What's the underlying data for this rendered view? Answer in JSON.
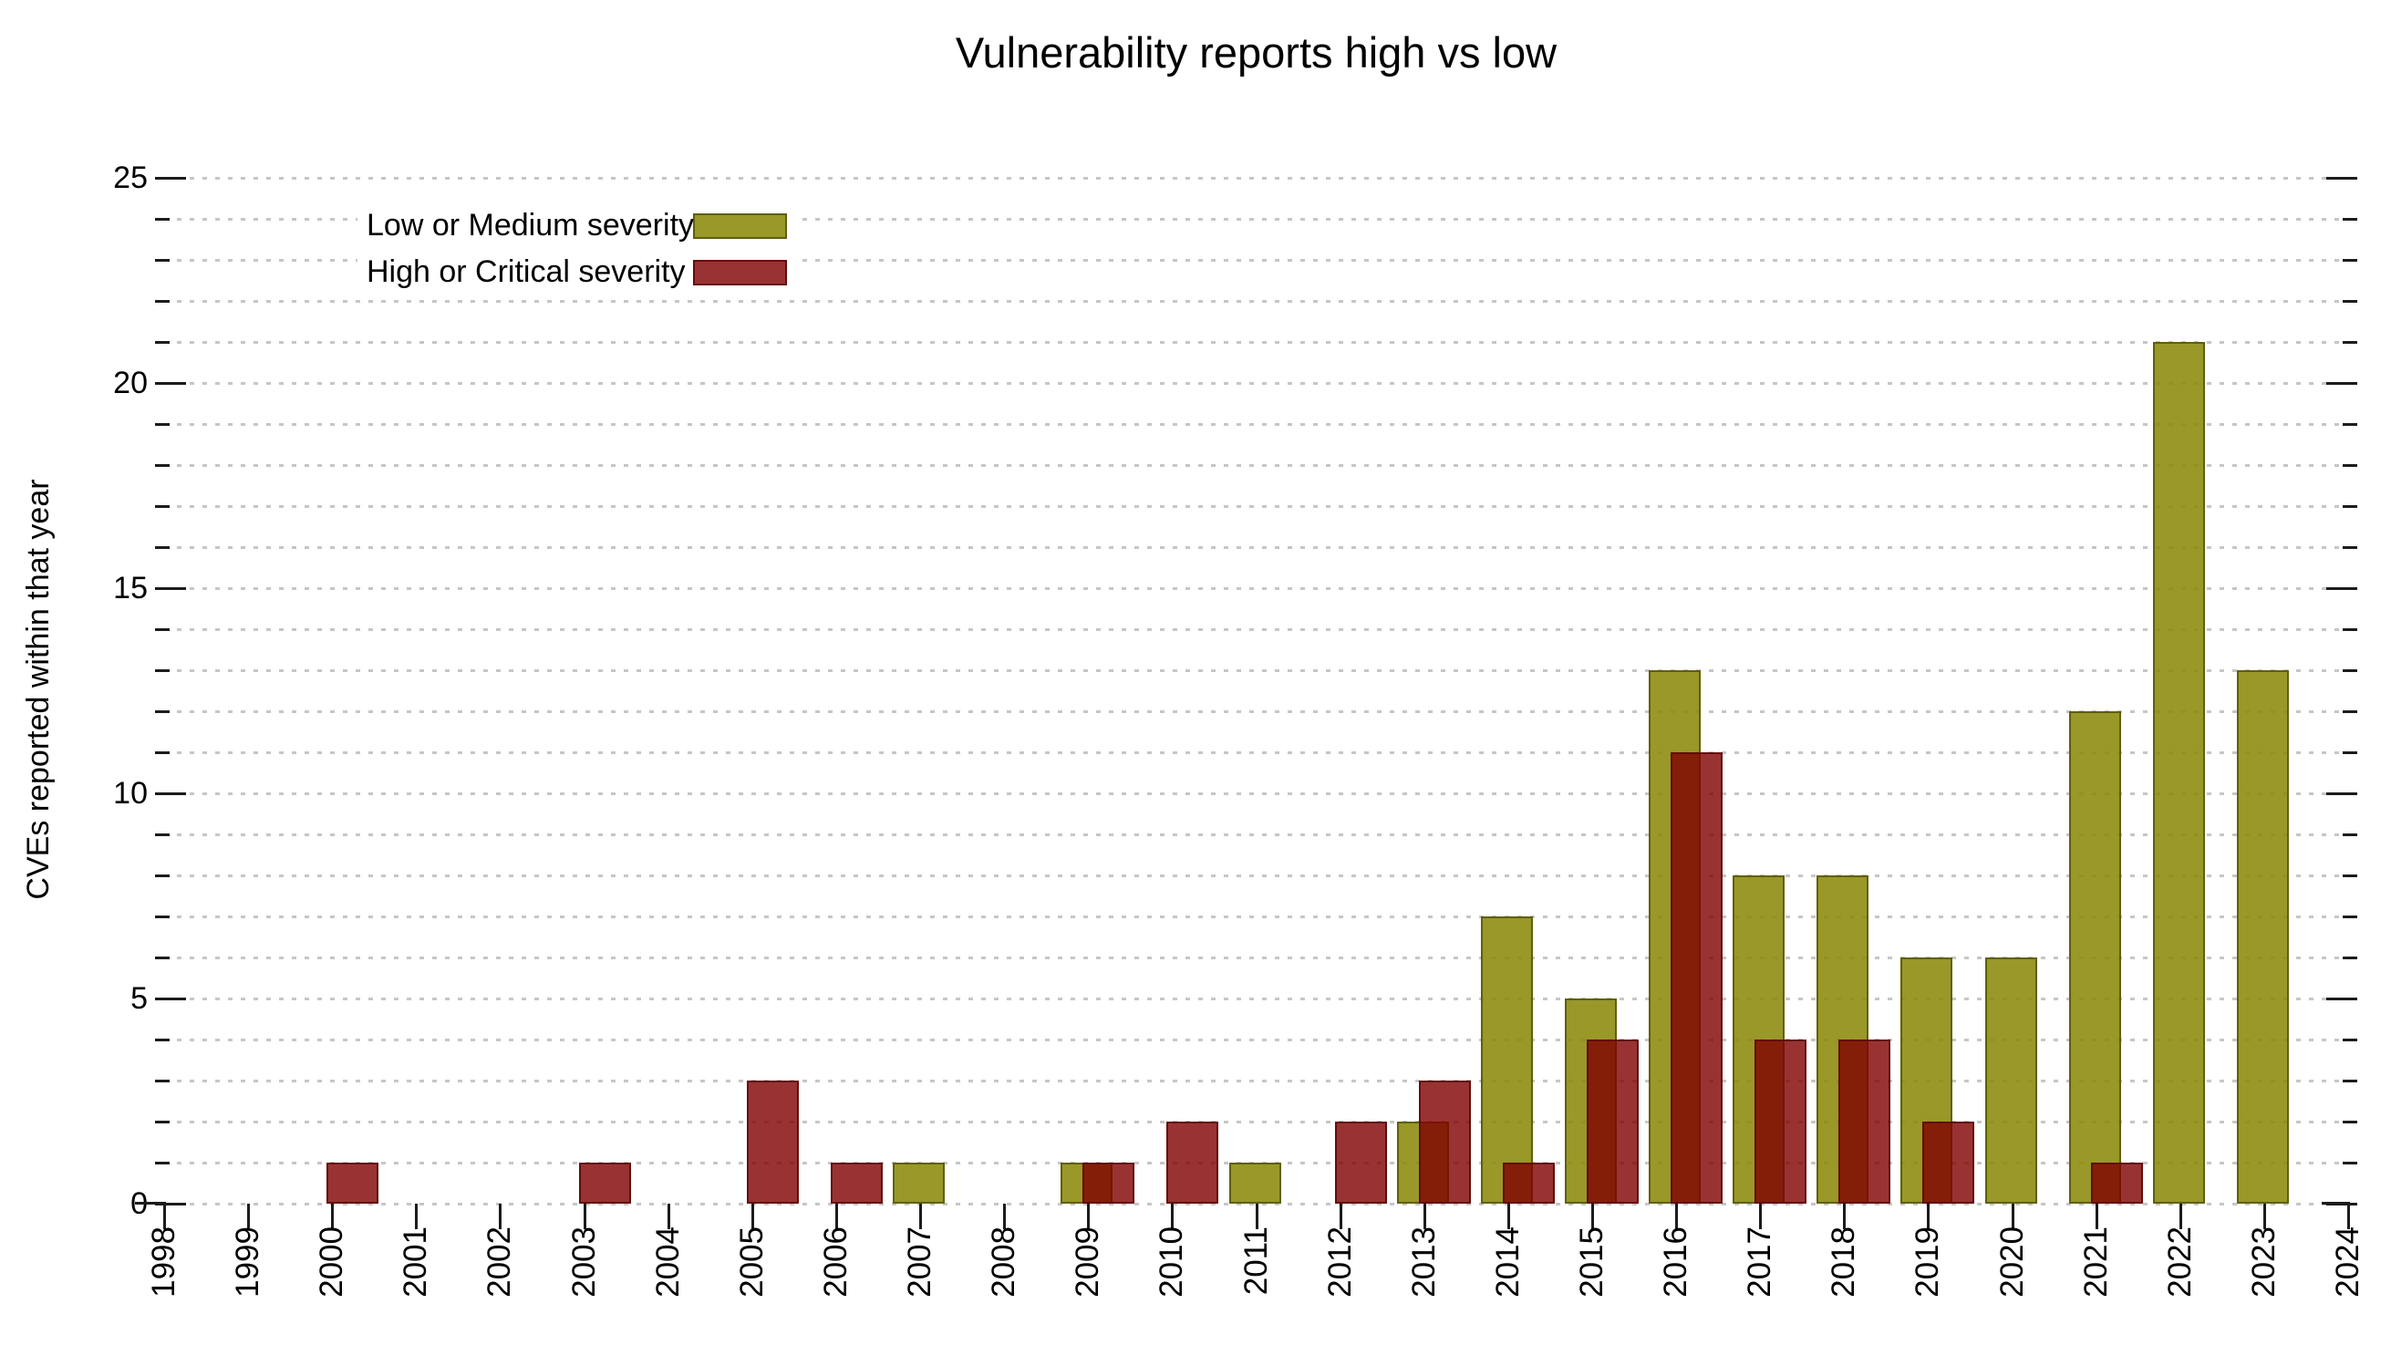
{
  "title": "Vulnerability reports high vs low",
  "y_axis": {
    "label": "CVEs reported within that year",
    "min": 0,
    "max": 25,
    "major_tick_labels": [
      "0",
      "5",
      "10",
      "15",
      "20",
      "25"
    ],
    "major_tick_step": 5,
    "minor_tick_step": 1
  },
  "x_axis": {
    "tick_labels": [
      "1998",
      "1999",
      "2000",
      "2001",
      "2002",
      "2003",
      "2004",
      "2005",
      "2006",
      "2007",
      "2008",
      "2009",
      "2010",
      "2011",
      "2012",
      "2013",
      "2014",
      "2015",
      "2016",
      "2017",
      "2018",
      "2019",
      "2020",
      "2021",
      "2022",
      "2023",
      "2024"
    ]
  },
  "legend": {
    "items": [
      {
        "label": "Low or Medium severity",
        "color": "#9c9a33"
      },
      {
        "label": "High or Critical severity",
        "color": "#9a3333"
      }
    ]
  },
  "colors": {
    "low_fill": "rgba(139,138,10,0.88)",
    "low_border": "rgba(90,89,10,0.9)",
    "high_fill": "rgba(128,0,0,0.8)",
    "high_border": "rgba(95,8,8,0.9)",
    "grid": "rgba(195,195,195,0.95)",
    "axis": "#1c1c1c"
  },
  "chart_data": {
    "type": "bar",
    "title": "Vulnerability reports high vs low",
    "xlabel": "",
    "ylabel": "CVEs reported within that year",
    "ylim": [
      0,
      25
    ],
    "grid": true,
    "legend_position": "top-left-inside",
    "categories": [
      1998,
      1999,
      2000,
      2001,
      2002,
      2003,
      2004,
      2005,
      2006,
      2007,
      2008,
      2009,
      2010,
      2011,
      2012,
      2013,
      2014,
      2015,
      2016,
      2017,
      2018,
      2019,
      2020,
      2021,
      2022,
      2023,
      2024
    ],
    "series": [
      {
        "name": "Low or Medium severity",
        "values": [
          0,
          0,
          0,
          0,
          0,
          0,
          0,
          0,
          0,
          1,
          0,
          1,
          0,
          1,
          0,
          2,
          7,
          5,
          13,
          8,
          8,
          6,
          6,
          12,
          21,
          13,
          0
        ]
      },
      {
        "name": "High or Critical severity",
        "values": [
          0,
          0,
          1,
          0,
          0,
          1,
          0,
          3,
          1,
          0,
          0,
          1,
          2,
          0,
          2,
          3,
          1,
          4,
          11,
          4,
          4,
          2,
          0,
          1,
          0,
          0,
          0
        ]
      }
    ]
  }
}
